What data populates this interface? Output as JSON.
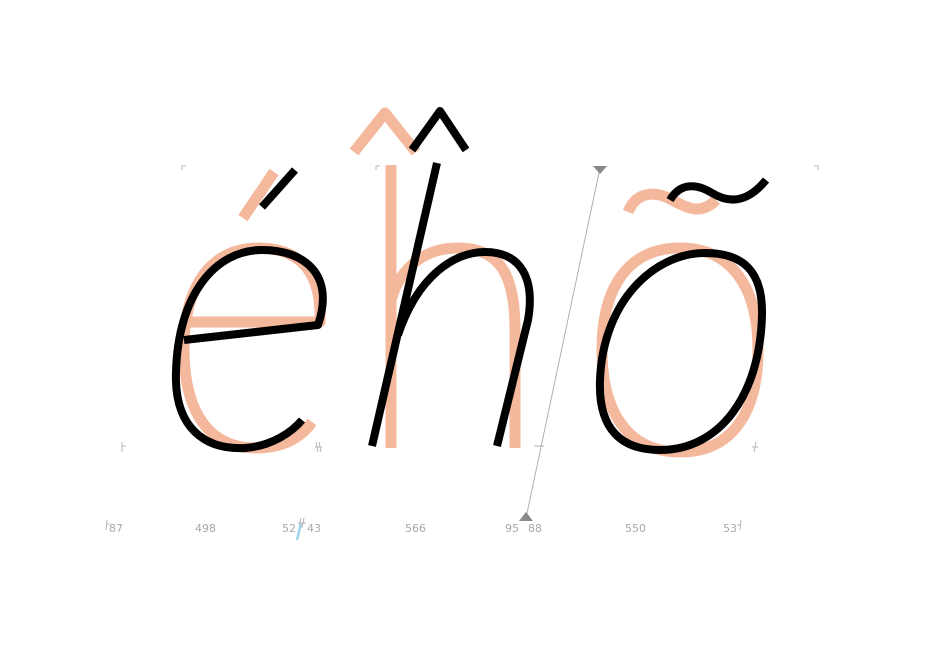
{
  "colors": {
    "outline_active": "#000000",
    "outline_background": "#f4b89c",
    "metrics_text": "#a9a9a9",
    "guide_line": "#b0b0b0",
    "cursor_marker": "#9fd3ec"
  },
  "glyphs": {
    "active_string": "éĥõ",
    "letters": [
      "é",
      "ĥ",
      "õ"
    ]
  },
  "metrics": {
    "e_lsb": "87",
    "e_width": "498",
    "e_rsb": "52",
    "h_lsb": "43",
    "h_width": "566",
    "h_rsb": "95",
    "o_lsb": "88",
    "o_width": "550",
    "o_rsb": "53"
  },
  "icons": {
    "slant_guide": "italic-angle-guide-line",
    "anchor_markers": "triangle-anchor-icon",
    "cursor": "text-cursor-icon"
  }
}
